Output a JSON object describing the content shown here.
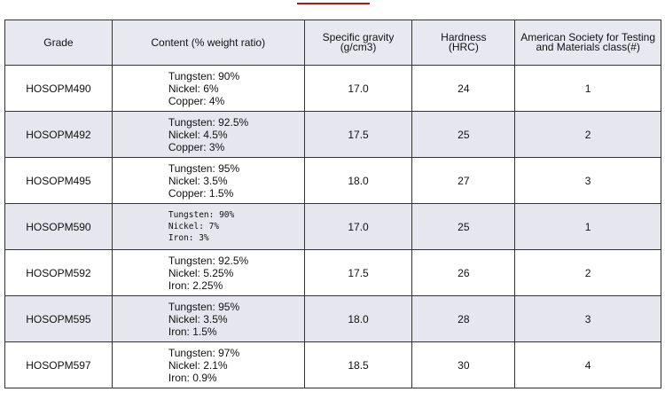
{
  "table": {
    "headers": [
      [
        "Grade"
      ],
      [
        "Content (% weight ratio)"
      ],
      [
        "Specific gravity",
        "(g/cm3)"
      ],
      [
        "Hardness",
        "(HRC)"
      ],
      [
        "American Society for Testing",
        "and Materials class(#)"
      ]
    ],
    "rows": [
      [
        "HOSOPM490",
        [
          "Tungsten: 90%",
          "Nickel: 6%",
          "Copper: 4%"
        ],
        "17.0",
        "24",
        "1"
      ],
      [
        "HOSOPM492",
        [
          "Tungsten: 92.5%",
          "Nickel: 4.5%",
          "Copper: 3%"
        ],
        "17.5",
        "25",
        "2"
      ],
      [
        "HOSOPM495",
        [
          "Tungsten: 95%",
          "Nickel: 3.5%",
          "Copper: 1.5%"
        ],
        "18.0",
        "27",
        "3"
      ],
      [
        "HOSOPM590",
        [
          "Tungsten: 90%",
          "Nickel: 7%",
          "Iron: 3%"
        ],
        "17.0",
        "25",
        "1"
      ],
      [
        "HOSOPM592",
        [
          "Tungsten: 92.5%",
          "Nickel: 5.25%",
          "Iron: 2.25%"
        ],
        "17.5",
        "26",
        "2"
      ],
      [
        "HOSOPM595",
        [
          "Tungsten: 95%",
          "Nickel: 3.5%",
          "Iron: 1.5%"
        ],
        "18.0",
        "28",
        "3"
      ],
      [
        "HOSOPM597",
        [
          "Tungsten: 97%",
          "Nickel: 2.1%",
          "Iron: 0.9%"
        ],
        "18.5",
        "30",
        "4"
      ]
    ]
  }
}
